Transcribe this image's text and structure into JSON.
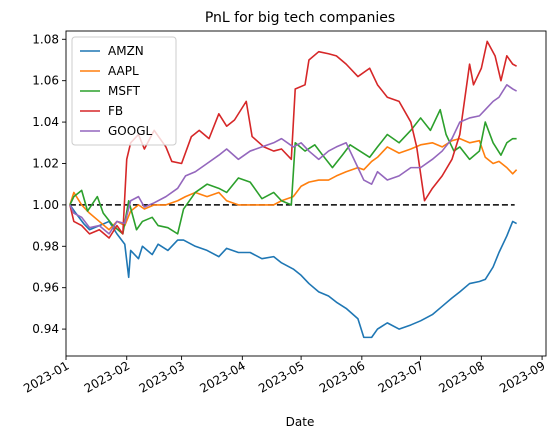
{
  "chart_data": {
    "type": "line",
    "title": "PnL for big tech companies",
    "xlabel": "Date",
    "ylabel": "",
    "ylim": [
      0.927,
      1.084
    ],
    "xlim": [
      "2023-01-01",
      "2023-09-03"
    ],
    "x_ticks": [
      "2023-01-01",
      "2023-02-01",
      "2023-03-01",
      "2023-04-01",
      "2023-05-01",
      "2023-06-01",
      "2023-07-01",
      "2023-08-01",
      "2023-09-01"
    ],
    "x_tick_labels": [
      "2023-01",
      "2023-02",
      "2023-03",
      "2023-04",
      "2023-05",
      "2023-06",
      "2023-07",
      "2023-08",
      "2023-09"
    ],
    "y_ticks": [
      0.94,
      0.96,
      0.98,
      1.0,
      1.02,
      1.04,
      1.06,
      1.08
    ],
    "y_tick_labels": [
      "0.94",
      "0.96",
      "0.98",
      "1.00",
      "1.02",
      "1.04",
      "1.06",
      "1.08"
    ],
    "grid": false,
    "legend_position": "top-left",
    "baseline": {
      "value": 1.0,
      "style": "dashed",
      "color": "#000000",
      "x_start": "2023-01-03",
      "x_end": "2023-08-18"
    },
    "series": [
      {
        "name": "AMZN",
        "color": "#1f77b4",
        "points": [
          [
            "2023-01-03",
            1.0
          ],
          [
            "2023-01-06",
            0.996
          ],
          [
            "2023-01-10",
            0.991
          ],
          [
            "2023-01-13",
            0.988
          ],
          [
            "2023-01-18",
            0.99
          ],
          [
            "2023-01-23",
            0.992
          ],
          [
            "2023-01-27",
            0.986
          ],
          [
            "2023-01-31",
            0.981
          ],
          [
            "2023-02-02",
            0.965
          ],
          [
            "2023-02-03",
            0.978
          ],
          [
            "2023-02-07",
            0.974
          ],
          [
            "2023-02-09",
            0.98
          ],
          [
            "2023-02-14",
            0.976
          ],
          [
            "2023-02-17",
            0.981
          ],
          [
            "2023-02-22",
            0.978
          ],
          [
            "2023-02-27",
            0.983
          ],
          [
            "2023-03-02",
            0.983
          ],
          [
            "2023-03-08",
            0.98
          ],
          [
            "2023-03-14",
            0.978
          ],
          [
            "2023-03-20",
            0.975
          ],
          [
            "2023-03-24",
            0.979
          ],
          [
            "2023-03-30",
            0.977
          ],
          [
            "2023-04-05",
            0.977
          ],
          [
            "2023-04-11",
            0.974
          ],
          [
            "2023-04-17",
            0.975
          ],
          [
            "2023-04-21",
            0.972
          ],
          [
            "2023-04-27",
            0.969
          ],
          [
            "2023-05-01",
            0.966
          ],
          [
            "2023-05-05",
            0.962
          ],
          [
            "2023-05-10",
            0.958
          ],
          [
            "2023-05-15",
            0.956
          ],
          [
            "2023-05-19",
            0.953
          ],
          [
            "2023-05-24",
            0.95
          ],
          [
            "2023-05-30",
            0.945
          ],
          [
            "2023-06-02",
            0.936
          ],
          [
            "2023-06-06",
            0.936
          ],
          [
            "2023-06-09",
            0.94
          ],
          [
            "2023-06-14",
            0.943
          ],
          [
            "2023-06-20",
            0.94
          ],
          [
            "2023-06-26",
            0.942
          ],
          [
            "2023-07-01",
            0.944
          ],
          [
            "2023-07-07",
            0.947
          ],
          [
            "2023-07-12",
            0.951
          ],
          [
            "2023-07-17",
            0.955
          ],
          [
            "2023-07-21",
            0.958
          ],
          [
            "2023-07-26",
            0.962
          ],
          [
            "2023-07-31",
            0.963
          ],
          [
            "2023-08-03",
            0.964
          ],
          [
            "2023-08-07",
            0.97
          ],
          [
            "2023-08-10",
            0.977
          ],
          [
            "2023-08-14",
            0.985
          ],
          [
            "2023-08-17",
            0.992
          ],
          [
            "2023-08-19",
            0.991
          ]
        ]
      },
      {
        "name": "AAPL",
        "color": "#ff7f0e",
        "points": [
          [
            "2023-01-03",
            1.0
          ],
          [
            "2023-01-05",
            1.006
          ],
          [
            "2023-01-09",
            1.0
          ],
          [
            "2023-01-13",
            0.996
          ],
          [
            "2023-01-18",
            0.992
          ],
          [
            "2023-01-23",
            0.988
          ],
          [
            "2023-01-27",
            0.992
          ],
          [
            "2023-01-31",
            0.99
          ],
          [
            "2023-02-03",
            0.997
          ],
          [
            "2023-02-07",
            1.0
          ],
          [
            "2023-02-10",
            0.998
          ],
          [
            "2023-02-15",
            1.0
          ],
          [
            "2023-02-21",
            1.0
          ],
          [
            "2023-02-27",
            1.002
          ],
          [
            "2023-03-03",
            1.004
          ],
          [
            "2023-03-08",
            1.006
          ],
          [
            "2023-03-14",
            1.004
          ],
          [
            "2023-03-20",
            1.006
          ],
          [
            "2023-03-24",
            1.002
          ],
          [
            "2023-03-30",
            1.0
          ],
          [
            "2023-04-04",
            1.0
          ],
          [
            "2023-04-11",
            1.0
          ],
          [
            "2023-04-17",
            1.0
          ],
          [
            "2023-04-21",
            1.002
          ],
          [
            "2023-04-27",
            1.004
          ],
          [
            "2023-05-01",
            1.009
          ],
          [
            "2023-05-05",
            1.011
          ],
          [
            "2023-05-10",
            1.012
          ],
          [
            "2023-05-15",
            1.012
          ],
          [
            "2023-05-19",
            1.014
          ],
          [
            "2023-05-24",
            1.016
          ],
          [
            "2023-05-30",
            1.018
          ],
          [
            "2023-06-02",
            1.017
          ],
          [
            "2023-06-06",
            1.021
          ],
          [
            "2023-06-09",
            1.023
          ],
          [
            "2023-06-14",
            1.028
          ],
          [
            "2023-06-20",
            1.025
          ],
          [
            "2023-06-26",
            1.027
          ],
          [
            "2023-07-01",
            1.029
          ],
          [
            "2023-07-07",
            1.03
          ],
          [
            "2023-07-12",
            1.028
          ],
          [
            "2023-07-17",
            1.031
          ],
          [
            "2023-07-21",
            1.032
          ],
          [
            "2023-07-26",
            1.03
          ],
          [
            "2023-07-31",
            1.031
          ],
          [
            "2023-08-03",
            1.023
          ],
          [
            "2023-08-07",
            1.02
          ],
          [
            "2023-08-10",
            1.021
          ],
          [
            "2023-08-14",
            1.018
          ],
          [
            "2023-08-17",
            1.015
          ],
          [
            "2023-08-19",
            1.017
          ]
        ]
      },
      {
        "name": "MSFT",
        "color": "#2ca02c",
        "points": [
          [
            "2023-01-03",
            1.0
          ],
          [
            "2023-01-05",
            1.004
          ],
          [
            "2023-01-09",
            1.007
          ],
          [
            "2023-01-12",
            0.997
          ],
          [
            "2023-01-17",
            1.004
          ],
          [
            "2023-01-20",
            0.996
          ],
          [
            "2023-01-25",
            0.99
          ],
          [
            "2023-01-30",
            0.986
          ],
          [
            "2023-02-02",
            1.002
          ],
          [
            "2023-02-06",
            0.988
          ],
          [
            "2023-02-09",
            0.992
          ],
          [
            "2023-02-14",
            0.994
          ],
          [
            "2023-02-17",
            0.99
          ],
          [
            "2023-02-22",
            0.989
          ],
          [
            "2023-02-27",
            0.986
          ],
          [
            "2023-03-02",
            0.998
          ],
          [
            "2023-03-08",
            1.006
          ],
          [
            "2023-03-14",
            1.01
          ],
          [
            "2023-03-20",
            1.008
          ],
          [
            "2023-03-24",
            1.006
          ],
          [
            "2023-03-30",
            1.013
          ],
          [
            "2023-04-05",
            1.011
          ],
          [
            "2023-04-11",
            1.003
          ],
          [
            "2023-04-17",
            1.006
          ],
          [
            "2023-04-21",
            1.002
          ],
          [
            "2023-04-26",
            1.0
          ],
          [
            "2023-04-28",
            1.03
          ],
          [
            "2023-05-03",
            1.026
          ],
          [
            "2023-05-08",
            1.029
          ],
          [
            "2023-05-12",
            1.024
          ],
          [
            "2023-05-17",
            1.018
          ],
          [
            "2023-05-22",
            1.024
          ],
          [
            "2023-05-26",
            1.029
          ],
          [
            "2023-05-31",
            1.026
          ],
          [
            "2023-06-05",
            1.023
          ],
          [
            "2023-06-09",
            1.028
          ],
          [
            "2023-06-14",
            1.034
          ],
          [
            "2023-06-20",
            1.03
          ],
          [
            "2023-06-26",
            1.036
          ],
          [
            "2023-07-01",
            1.042
          ],
          [
            "2023-07-06",
            1.036
          ],
          [
            "2023-07-11",
            1.046
          ],
          [
            "2023-07-14",
            1.034
          ],
          [
            "2023-07-18",
            1.026
          ],
          [
            "2023-07-21",
            1.028
          ],
          [
            "2023-07-26",
            1.022
          ],
          [
            "2023-07-31",
            1.026
          ],
          [
            "2023-08-03",
            1.04
          ],
          [
            "2023-08-07",
            1.03
          ],
          [
            "2023-08-11",
            1.024
          ],
          [
            "2023-08-14",
            1.03
          ],
          [
            "2023-08-17",
            1.032
          ],
          [
            "2023-08-19",
            1.032
          ]
        ]
      },
      {
        "name": "FB",
        "color": "#d62728",
        "points": [
          [
            "2023-01-03",
            1.0
          ],
          [
            "2023-01-05",
            0.992
          ],
          [
            "2023-01-09",
            0.99
          ],
          [
            "2023-01-13",
            0.986
          ],
          [
            "2023-01-18",
            0.988
          ],
          [
            "2023-01-23",
            0.984
          ],
          [
            "2023-01-27",
            0.99
          ],
          [
            "2023-01-30",
            0.986
          ],
          [
            "2023-02-01",
            1.022
          ],
          [
            "2023-02-03",
            1.03
          ],
          [
            "2023-02-07",
            1.034
          ],
          [
            "2023-02-10",
            1.027
          ],
          [
            "2023-02-15",
            1.036
          ],
          [
            "2023-02-21",
            1.028
          ],
          [
            "2023-02-24",
            1.021
          ],
          [
            "2023-03-01",
            1.02
          ],
          [
            "2023-03-06",
            1.033
          ],
          [
            "2023-03-10",
            1.036
          ],
          [
            "2023-03-15",
            1.032
          ],
          [
            "2023-03-20",
            1.044
          ],
          [
            "2023-03-24",
            1.038
          ],
          [
            "2023-03-28",
            1.041
          ],
          [
            "2023-04-03",
            1.05
          ],
          [
            "2023-04-06",
            1.033
          ],
          [
            "2023-04-12",
            1.028
          ],
          [
            "2023-04-17",
            1.026
          ],
          [
            "2023-04-21",
            1.027
          ],
          [
            "2023-04-26",
            1.022
          ],
          [
            "2023-04-28",
            1.056
          ],
          [
            "2023-05-03",
            1.058
          ],
          [
            "2023-05-05",
            1.07
          ],
          [
            "2023-05-10",
            1.074
          ],
          [
            "2023-05-15",
            1.073
          ],
          [
            "2023-05-19",
            1.072
          ],
          [
            "2023-05-24",
            1.068
          ],
          [
            "2023-05-30",
            1.062
          ],
          [
            "2023-06-05",
            1.066
          ],
          [
            "2023-06-09",
            1.058
          ],
          [
            "2023-06-14",
            1.052
          ],
          [
            "2023-06-20",
            1.05
          ],
          [
            "2023-06-26",
            1.04
          ],
          [
            "2023-06-29",
            1.028
          ],
          [
            "2023-07-03",
            1.002
          ],
          [
            "2023-07-07",
            1.008
          ],
          [
            "2023-07-12",
            1.014
          ],
          [
            "2023-07-17",
            1.022
          ],
          [
            "2023-07-21",
            1.034
          ],
          [
            "2023-07-26",
            1.068
          ],
          [
            "2023-07-28",
            1.058
          ],
          [
            "2023-08-01",
            1.066
          ],
          [
            "2023-08-04",
            1.079
          ],
          [
            "2023-08-08",
            1.072
          ],
          [
            "2023-08-11",
            1.06
          ],
          [
            "2023-08-14",
            1.072
          ],
          [
            "2023-08-17",
            1.068
          ],
          [
            "2023-08-19",
            1.067
          ]
        ]
      },
      {
        "name": "GOOGL",
        "color": "#9467bd",
        "points": [
          [
            "2023-01-03",
            1.0
          ],
          [
            "2023-01-05",
            0.996
          ],
          [
            "2023-01-09",
            0.994
          ],
          [
            "2023-01-13",
            0.989
          ],
          [
            "2023-01-18",
            0.99
          ],
          [
            "2023-01-23",
            0.986
          ],
          [
            "2023-01-27",
            0.992
          ],
          [
            "2023-01-31",
            0.991
          ],
          [
            "2023-02-03",
            1.002
          ],
          [
            "2023-02-07",
            1.004
          ],
          [
            "2023-02-10",
            0.999
          ],
          [
            "2023-02-15",
            1.001
          ],
          [
            "2023-02-21",
            1.004
          ],
          [
            "2023-02-27",
            1.008
          ],
          [
            "2023-03-03",
            1.014
          ],
          [
            "2023-03-08",
            1.016
          ],
          [
            "2023-03-14",
            1.02
          ],
          [
            "2023-03-20",
            1.024
          ],
          [
            "2023-03-24",
            1.027
          ],
          [
            "2023-03-30",
            1.022
          ],
          [
            "2023-04-05",
            1.026
          ],
          [
            "2023-04-11",
            1.028
          ],
          [
            "2023-04-17",
            1.03
          ],
          [
            "2023-04-21",
            1.032
          ],
          [
            "2023-04-27",
            1.028
          ],
          [
            "2023-05-01",
            1.03
          ],
          [
            "2023-05-05",
            1.026
          ],
          [
            "2023-05-10",
            1.022
          ],
          [
            "2023-05-15",
            1.026
          ],
          [
            "2023-05-19",
            1.028
          ],
          [
            "2023-05-24",
            1.03
          ],
          [
            "2023-05-30",
            1.018
          ],
          [
            "2023-06-02",
            1.012
          ],
          [
            "2023-06-06",
            1.01
          ],
          [
            "2023-06-09",
            1.016
          ],
          [
            "2023-06-14",
            1.012
          ],
          [
            "2023-06-20",
            1.014
          ],
          [
            "2023-06-26",
            1.018
          ],
          [
            "2023-07-01",
            1.018
          ],
          [
            "2023-07-07",
            1.022
          ],
          [
            "2023-07-12",
            1.026
          ],
          [
            "2023-07-17",
            1.032
          ],
          [
            "2023-07-21",
            1.04
          ],
          [
            "2023-07-26",
            1.042
          ],
          [
            "2023-07-31",
            1.043
          ],
          [
            "2023-08-03",
            1.046
          ],
          [
            "2023-08-07",
            1.05
          ],
          [
            "2023-08-10",
            1.052
          ],
          [
            "2023-08-14",
            1.058
          ],
          [
            "2023-08-17",
            1.056
          ],
          [
            "2023-08-19",
            1.055
          ]
        ]
      }
    ]
  }
}
